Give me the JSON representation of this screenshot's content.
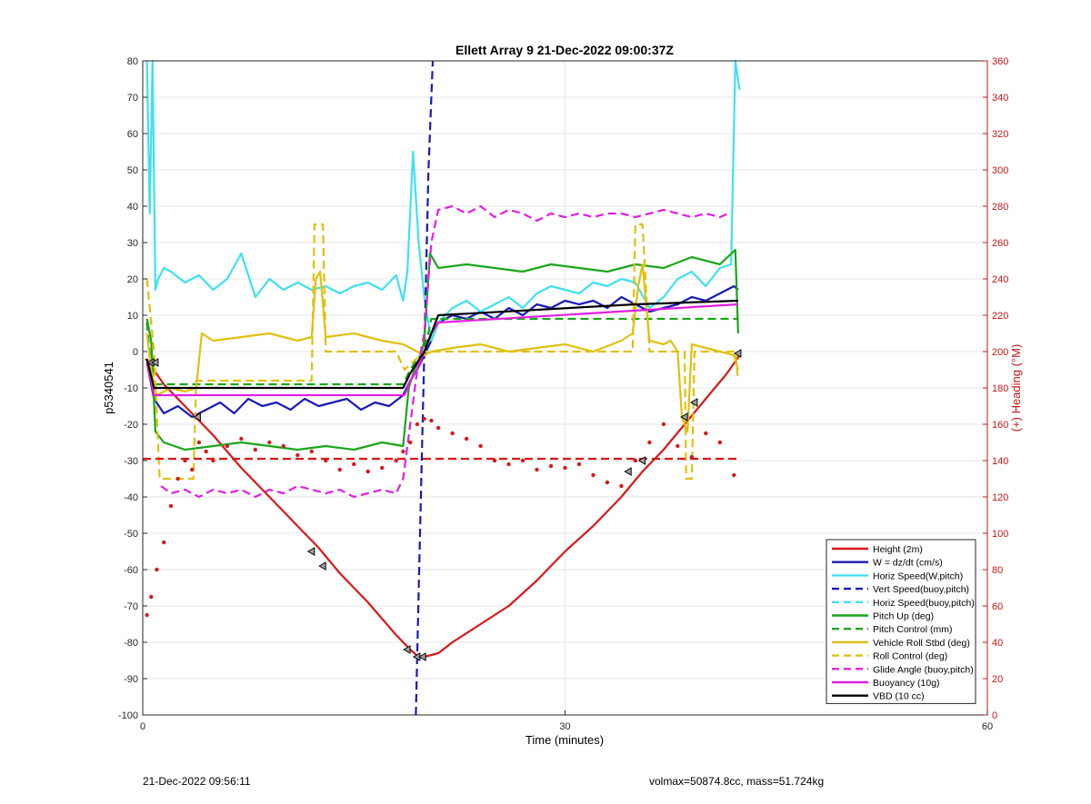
{
  "chart_data": {
    "type": "line",
    "title": "Ellett Array 9 21-Dec-2022 09:00:37Z",
    "xlabel": "Time (minutes)",
    "ylabel": "p5340541",
    "ylabel_right": "(+) Heading (°M)",
    "xlim": [
      0,
      60
    ],
    "ylim": [
      -100,
      80
    ],
    "ylim_right": [
      0,
      360
    ],
    "xticks": [
      0,
      30,
      60
    ],
    "yticks": [
      -100,
      -90,
      -80,
      -70,
      -60,
      -50,
      -40,
      -30,
      -20,
      -10,
      0,
      10,
      20,
      30,
      40,
      50,
      60,
      70,
      80
    ],
    "yticks_right": [
      0,
      20,
      40,
      60,
      80,
      100,
      120,
      140,
      160,
      180,
      200,
      220,
      240,
      260,
      280,
      300,
      320,
      340,
      360
    ],
    "grid": true,
    "legend_position": "bottom-right",
    "colors": {
      "red": "#d7191c",
      "blue": "#1a1ab4",
      "cyan": "#40e0f0",
      "green": "#1aa61a",
      "gold": "#e0c010",
      "magenta": "#e020e0",
      "black": "#000000",
      "axis_right": "#c81414"
    },
    "series": [
      {
        "name": "Height (2m)",
        "color": "#d7191c",
        "style": "solid",
        "x": [
          0.2,
          0.6,
          1.5,
          3,
          5,
          7,
          9,
          11,
          12.5,
          14,
          16,
          18,
          19,
          19.6,
          20,
          21,
          22,
          24,
          26,
          28,
          30,
          32,
          34,
          35.5,
          37,
          38.5,
          40,
          41.5,
          42.4
        ],
        "y": [
          -2,
          -4,
          -9,
          -15,
          -23,
          -32,
          -40,
          -48,
          -54,
          -61,
          -69,
          -78,
          -82,
          -84,
          -84,
          -83,
          -80,
          -75,
          -70,
          -63,
          -55,
          -48,
          -40,
          -33,
          -27,
          -20,
          -13,
          -6,
          -1
        ]
      },
      {
        "name": "W = dz/dt (cm/s)",
        "color": "#1a1ab4",
        "style": "solid",
        "x": [
          0.3,
          0.8,
          1.5,
          2.5,
          3.5,
          4.5,
          5.5,
          6.5,
          7.5,
          8.5,
          9.5,
          10.5,
          11.5,
          12.5,
          13.5,
          14.5,
          15.5,
          16.5,
          17.5,
          18.5,
          19.0,
          19.5,
          20.0,
          20.5,
          21.0,
          22,
          23,
          24,
          25,
          26,
          27,
          28,
          29,
          30,
          31,
          32,
          33,
          34,
          35,
          36,
          37,
          38,
          39,
          40,
          41,
          42,
          42.3
        ],
        "y": [
          -3,
          -13,
          -17,
          -15,
          -18,
          -16,
          -14,
          -17,
          -13,
          -15,
          -14,
          -16,
          -13,
          -15,
          -14,
          -13,
          -16,
          -14,
          -15,
          -12,
          -8,
          -5,
          -1,
          3,
          8,
          10,
          9,
          11,
          9,
          12,
          10,
          13,
          12,
          14,
          13,
          14,
          12,
          15,
          13,
          11,
          12,
          13,
          15,
          14,
          16,
          18,
          17
        ]
      },
      {
        "name": "Horiz Speed(W,pitch)",
        "color": "#40e0f0",
        "style": "solid",
        "x": [
          0.3,
          0.5,
          0.7,
          0.9,
          1.1,
          1.5,
          2,
          3,
          4,
          5,
          6,
          7,
          8,
          9,
          10,
          11,
          12,
          13,
          14,
          15,
          16,
          17,
          18,
          18.5,
          18.8,
          19.2,
          19.6,
          20,
          20.5,
          21,
          22,
          23,
          24,
          25,
          26,
          27,
          28,
          29,
          30,
          31,
          32,
          33,
          34,
          35,
          36,
          37,
          38,
          39,
          40,
          41,
          41.8,
          42.1,
          42.4
        ],
        "y": [
          80,
          38,
          80,
          17,
          20,
          23,
          22,
          19,
          21,
          17,
          20,
          27,
          15,
          20,
          17,
          19,
          17,
          18,
          16,
          18,
          19,
          17,
          21,
          14,
          22,
          55,
          30,
          15,
          3,
          8,
          12,
          14,
          11,
          13,
          15,
          12,
          16,
          18,
          17,
          16,
          19,
          18,
          20,
          19,
          12,
          15,
          20,
          22,
          18,
          23,
          24,
          80,
          72
        ]
      },
      {
        "name": "Vert Speed(buoy,pitch)",
        "color": "#1a1ab4",
        "style": "dashed",
        "x": [
          19.4,
          19.7,
          20.0,
          20.3,
          20.6
        ],
        "y": [
          -100,
          -50,
          0,
          50,
          80
        ]
      },
      {
        "name": "Horiz Speed(buoy,pitch)",
        "color": "#40e0f0",
        "style": "dashed",
        "x": [],
        "y": []
      },
      {
        "name": "Pitch Up (deg)",
        "color": "#1aa61a",
        "style": "solid",
        "x": [
          0.3,
          0.6,
          0.9,
          1.5,
          3,
          5,
          7,
          9,
          11,
          13,
          15,
          17,
          18.5,
          18.9,
          19.3,
          19.7,
          20,
          20.4,
          21,
          23,
          25,
          27,
          29,
          31,
          33,
          35,
          37,
          39,
          41,
          42.1,
          42.3
        ],
        "y": [
          9,
          3,
          -22,
          -25,
          -27,
          -26,
          -25,
          -26,
          -27,
          -26,
          -27,
          -25,
          -26,
          -10,
          -5,
          -2,
          3,
          27,
          23,
          24,
          23,
          22,
          24,
          23,
          22,
          24,
          23,
          26,
          24,
          28,
          5
        ]
      },
      {
        "name": "Pitch Control (mm)",
        "color": "#1aa61a",
        "style": "dashed",
        "x": [
          0.3,
          0.7,
          18.5,
          19,
          19.5,
          20,
          20.5,
          42.3
        ],
        "y": [
          8,
          -9,
          -9,
          -5,
          -2,
          0,
          9,
          9
        ]
      },
      {
        "name": "Vehicle Roll Stbd (deg)",
        "color": "#e0c010",
        "style": "solid",
        "x": [
          0.3,
          0.6,
          1,
          2,
          3,
          3.8,
          4.2,
          5,
          7,
          9,
          11,
          12,
          12.3,
          12.6,
          13,
          15,
          17,
          18.5,
          19,
          20,
          20.5,
          22,
          24,
          26,
          28,
          30,
          32,
          34,
          34.8,
          35.2,
          35.5,
          36,
          37,
          37.5,
          38,
          38.3,
          38.7,
          39,
          40,
          41,
          42,
          42.3
        ],
        "y": [
          5,
          -5,
          -12,
          -10,
          -11,
          -10,
          5,
          3,
          4,
          5,
          3,
          4,
          20,
          22,
          4,
          5,
          3,
          2,
          1,
          -1,
          0,
          1,
          2,
          0,
          1,
          2,
          0,
          3,
          5,
          18,
          24,
          3,
          2,
          3,
          0,
          -18,
          -22,
          2,
          1,
          0,
          -1,
          -5
        ]
      },
      {
        "name": "Roll Control (deg)",
        "color": "#e0c010",
        "style": "dashed",
        "x": [
          0.3,
          0.8,
          1.2,
          3.6,
          3.8,
          12,
          12.2,
          12.8,
          13,
          18,
          18.6,
          20,
          34.8,
          35,
          35.5,
          36,
          36.5,
          38.5,
          38.6,
          39,
          39.2,
          42.1,
          42.3
        ],
        "y": [
          20,
          0,
          -35,
          -35,
          -8,
          -8,
          35,
          35,
          0,
          0,
          -5,
          0,
          0,
          35,
          35,
          0,
          0,
          0,
          -35,
          -35,
          0,
          0,
          -8
        ]
      },
      {
        "name": "Glide Angle (buoy,pitch)",
        "color": "#e020e0",
        "style": "dashed",
        "x": [
          1.3,
          2,
          3,
          4,
          5,
          6,
          7,
          8,
          9,
          10,
          11,
          12,
          13,
          14,
          15,
          16,
          17,
          18,
          18.5,
          19,
          19.5,
          20,
          20.5,
          21,
          22,
          23,
          24,
          25,
          26,
          27,
          28,
          29,
          30,
          31,
          32,
          33,
          34,
          35,
          36,
          37,
          38,
          39,
          40,
          41,
          41.6
        ],
        "y": [
          -37,
          -39,
          -38,
          -40,
          -38,
          -39,
          -38,
          -40,
          -38,
          -39,
          -37,
          -38,
          -39,
          -38,
          -40,
          -39,
          -38,
          -39,
          -35,
          -20,
          -5,
          5,
          30,
          39,
          40,
          38,
          40,
          37,
          39,
          38,
          36,
          38,
          37,
          38,
          37,
          38,
          38,
          37,
          38,
          39,
          38,
          37,
          38,
          37,
          38
        ]
      },
      {
        "name": "Buoyancy (10g)",
        "color": "#e020e0",
        "style": "solid",
        "x": [
          0.3,
          0.8,
          18.6,
          19,
          19.5,
          20,
          20.5,
          21,
          42.3
        ],
        "y": [
          -3,
          -12,
          -12,
          -8,
          -5,
          0,
          5,
          8,
          13
        ]
      },
      {
        "name": "VBD (10 cc)",
        "color": "#000000",
        "style": "solid",
        "x": [
          0.3,
          0.8,
          18.5,
          19,
          19.5,
          20,
          20.5,
          21,
          35,
          42.3
        ],
        "y": [
          -2,
          -10,
          -10,
          -6,
          -3,
          0,
          5,
          10,
          13,
          14
        ]
      },
      {
        "name": "Heading",
        "axis": "right",
        "color": "#d7191c",
        "style": "dotted",
        "x": [
          0.3,
          0.6,
          1,
          1.5,
          2,
          2.5,
          3,
          3.5,
          4,
          4.5,
          5,
          6,
          7,
          8,
          9,
          10,
          11,
          12,
          13,
          14,
          15,
          16,
          17,
          18,
          18.5,
          19,
          19.5,
          20,
          20.5,
          21,
          22,
          23,
          24,
          25,
          26,
          27,
          28,
          29,
          30,
          31,
          32,
          33,
          34,
          35,
          36,
          37,
          38,
          39,
          40,
          41,
          42
        ],
        "y": [
          55,
          65,
          80,
          95,
          115,
          130,
          140,
          135,
          150,
          145,
          140,
          148,
          152,
          146,
          150,
          148,
          143,
          145,
          140,
          135,
          138,
          134,
          136,
          140,
          145,
          150,
          160,
          163,
          162,
          158,
          155,
          152,
          148,
          140,
          138,
          140,
          135,
          137,
          136,
          138,
          132,
          128,
          126,
          140,
          150,
          160,
          148,
          142,
          155,
          150,
          132
        ]
      },
      {
        "name": "Heading target",
        "axis": "right",
        "color": "#d7191c",
        "style": "dashed",
        "x": [
          0,
          42.4
        ],
        "y": [
          141,
          141
        ]
      }
    ],
    "markers": [
      {
        "x": 0.6,
        "y": -3
      },
      {
        "x": 0.9,
        "y": -3
      },
      {
        "x": 3.9,
        "y": -18
      },
      {
        "x": 12,
        "y": -55
      },
      {
        "x": 12.8,
        "y": -59
      },
      {
        "x": 18.8,
        "y": -82
      },
      {
        "x": 19.5,
        "y": -84
      },
      {
        "x": 19.9,
        "y": -84
      },
      {
        "x": 34.5,
        "y": -33
      },
      {
        "x": 35.5,
        "y": -30
      },
      {
        "x": 38.5,
        "y": -18
      },
      {
        "x": 39.2,
        "y": -14
      },
      {
        "x": 42.3,
        "y": -0.5
      }
    ]
  },
  "footer": {
    "left": "21-Dec-2022 09:56:11",
    "right": "volmax=50874.8cc, mass=51.724kg"
  }
}
